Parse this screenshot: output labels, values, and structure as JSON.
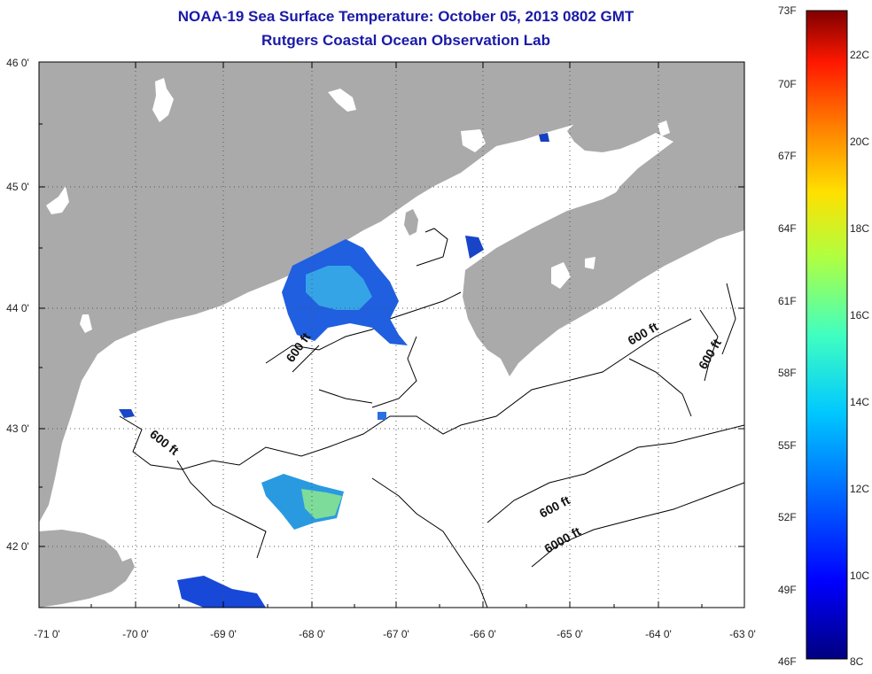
{
  "title": {
    "line1": "NOAA-19 Sea Surface Temperature:  October 05, 2013 0802 GMT",
    "line2": "Rutgers Coastal Ocean Observation Lab"
  },
  "map": {
    "lon_labels": [
      "-71 0'",
      "-70 0'",
      "-69 0'",
      "-68 0'",
      "-67 0'",
      "-66 0'",
      "-65 0'",
      "-64 0'",
      "-63 0'"
    ],
    "lat_labels": [
      "46 0'",
      "45 0'",
      "44 0'",
      "43 0'",
      "42 0'"
    ],
    "lon_range": [
      -71,
      -63
    ],
    "lat_range": [
      41.5,
      46
    ],
    "contour_labels": [
      "600 ft",
      "600 ft",
      "600 ft",
      "600 ft",
      "600 ft",
      "6000 ft"
    ],
    "colors": {
      "land": "#aaaaaa",
      "water": "#ffffff",
      "grid": "#555555"
    }
  },
  "colorbar": {
    "fahrenheit": [
      "73F",
      "70F",
      "67F",
      "64F",
      "61F",
      "58F",
      "55F",
      "52F",
      "49F",
      "46F"
    ],
    "celsius": [
      "22C",
      "20C",
      "18C",
      "16C",
      "14C",
      "12C",
      "10C",
      "8C"
    ],
    "colormap": "jet"
  }
}
